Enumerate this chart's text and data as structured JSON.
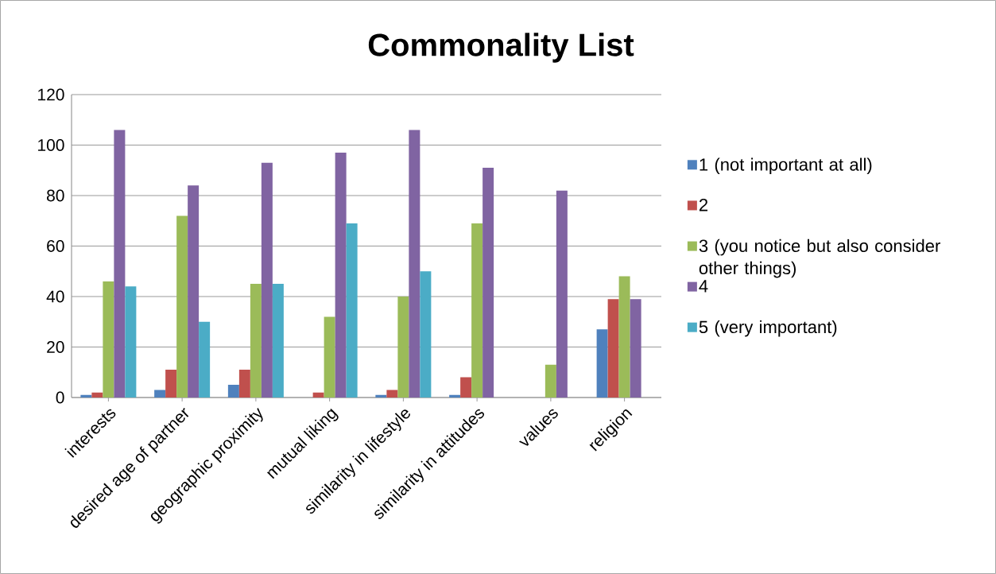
{
  "chart_data": {
    "type": "bar",
    "title": "Commonality List",
    "categories": [
      "interests",
      "desired age of partner",
      "geographic proximity",
      "mutual liking",
      "similarity in lifestyle",
      "similarity in attitudes",
      "values",
      "religion"
    ],
    "series": [
      {
        "name": "1 (not important at all)",
        "color": "#4f81bd",
        "values": [
          1,
          3,
          5,
          null,
          1,
          1,
          null,
          27
        ]
      },
      {
        "name": "2",
        "color": "#c0504d",
        "values": [
          2,
          11,
          11,
          2,
          3,
          8,
          null,
          39
        ]
      },
      {
        "name": "3 (you notice but also consider other things)",
        "color": "#9bbb59",
        "values": [
          46,
          72,
          45,
          32,
          40,
          69,
          13,
          48
        ]
      },
      {
        "name": "4",
        "color": "#8064a2",
        "values": [
          106,
          84,
          93,
          97,
          106,
          91,
          82,
          39
        ]
      },
      {
        "name": "5 (very important)",
        "color": "#4bacc6",
        "values": [
          44,
          30,
          45,
          69,
          50,
          null,
          null,
          null
        ]
      }
    ],
    "ylim": [
      0,
      120
    ],
    "yticks": [
      0,
      20,
      40,
      60,
      80,
      100,
      120
    ],
    "grid": "y",
    "legend": "right"
  }
}
